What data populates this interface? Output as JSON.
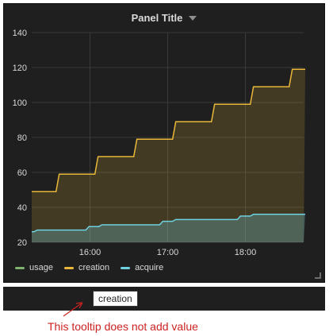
{
  "panel": {
    "title": "Panel Title"
  },
  "legend": [
    {
      "name": "usage",
      "color": "#7eb26d"
    },
    {
      "name": "creation",
      "color": "#eab839"
    },
    {
      "name": "acquire",
      "color": "#6ed0e0"
    }
  ],
  "tooltip": {
    "text": "creation"
  },
  "annotation": {
    "text": "This tooltip does not add value",
    "color": "#cc2222"
  },
  "chart_data": {
    "type": "area",
    "ylim": [
      20,
      140
    ],
    "yticks": [
      20,
      40,
      60,
      80,
      100,
      120,
      140
    ],
    "xlim": [
      "15:15",
      "18:45"
    ],
    "xticks": [
      "16:00",
      "17:00",
      "18:00"
    ],
    "grid": true,
    "legend_position": "bottom-left",
    "series": [
      {
        "name": "creation",
        "color": "#eab839",
        "steps": [
          {
            "x": "15:15",
            "y": 49
          },
          {
            "x": "15:35",
            "y": 59
          },
          {
            "x": "16:05",
            "y": 69
          },
          {
            "x": "16:35",
            "y": 79
          },
          {
            "x": "17:05",
            "y": 89
          },
          {
            "x": "17:35",
            "y": 99
          },
          {
            "x": "18:05",
            "y": 109
          },
          {
            "x": "18:35",
            "y": 119
          },
          {
            "x": "18:45",
            "y": 119
          }
        ]
      },
      {
        "name": "acquire",
        "color": "#6ed0e0",
        "steps": [
          {
            "x": "15:15",
            "y": 26
          },
          {
            "x": "15:18",
            "y": 27
          },
          {
            "x": "15:58",
            "y": 29
          },
          {
            "x": "16:08",
            "y": 30
          },
          {
            "x": "16:55",
            "y": 32
          },
          {
            "x": "17:05",
            "y": 33
          },
          {
            "x": "17:55",
            "y": 35
          },
          {
            "x": "18:05",
            "y": 36
          },
          {
            "x": "18:45",
            "y": 36
          }
        ]
      }
    ]
  }
}
